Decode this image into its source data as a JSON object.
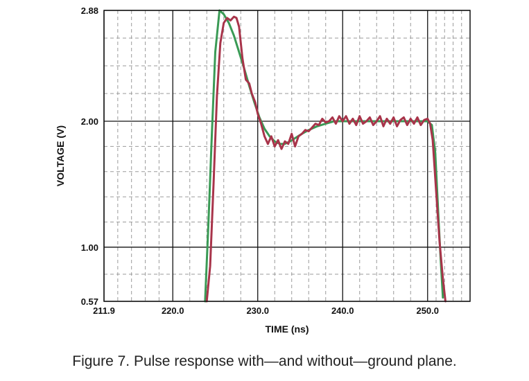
{
  "figure": {
    "caption": "Figure 7. Pulse response with—and without—ground plane."
  },
  "chart_data": {
    "type": "line",
    "title": "",
    "xlabel": "TIME (ns)",
    "ylabel": "VOLTAGE (V)",
    "xlim": [
      211.9,
      255.0
    ],
    "ylim": [
      0.57,
      2.88
    ],
    "x_ticks": [
      211.9,
      220.0,
      230.0,
      240.0,
      250.0
    ],
    "x_tick_labels": [
      "211.9",
      "220.0",
      "230.0",
      "240.0",
      "250.0"
    ],
    "y_ticks": [
      0.57,
      1.0,
      2.0,
      2.88
    ],
    "y_tick_labels": [
      "0.57",
      "1.00",
      "2.00",
      "2.88"
    ],
    "grid": true,
    "grid_style": "major solid, minor dashed",
    "colors": {
      "green": "#3a9a55",
      "red": "#a8344a",
      "grid_major": "#111111",
      "grid_minor": "#9a9a9a"
    },
    "series": [
      {
        "color": "green",
        "x": [
          223.8,
          224.2,
          224.6,
          225.0,
          225.5,
          226.0,
          226.6,
          227.2,
          227.8,
          228.4,
          229.0,
          229.6,
          230.2,
          230.8,
          231.4,
          232.0,
          232.6,
          233.2,
          233.8,
          234.5,
          235.2,
          236.0,
          237.0,
          238.0,
          239.0,
          240.0,
          241.0,
          242.0,
          243.0,
          244.0,
          245.0,
          246.0,
          247.0,
          248.0,
          249.0,
          250.0,
          250.5,
          250.9,
          251.2,
          251.5,
          251.8
        ],
        "y": [
          0.57,
          1.2,
          1.9,
          2.55,
          2.88,
          2.85,
          2.78,
          2.68,
          2.55,
          2.42,
          2.28,
          2.15,
          2.03,
          1.94,
          1.88,
          1.84,
          1.82,
          1.82,
          1.84,
          1.87,
          1.9,
          1.93,
          1.96,
          1.98,
          2.0,
          2.0,
          2.0,
          2.0,
          2.0,
          2.0,
          2.0,
          2.0,
          2.0,
          2.0,
          2.0,
          2.0,
          1.97,
          1.75,
          1.35,
          0.95,
          0.6
        ]
      },
      {
        "color": "red",
        "x": [
          224.0,
          224.4,
          224.8,
          225.2,
          225.6,
          226.0,
          226.4,
          226.8,
          227.2,
          227.5,
          227.8,
          228.2,
          228.6,
          229.0,
          229.3,
          229.7,
          230.0,
          230.4,
          230.8,
          231.2,
          231.6,
          232.0,
          232.4,
          232.8,
          233.2,
          233.6,
          234.0,
          234.4,
          234.8,
          235.2,
          235.6,
          236.0,
          236.4,
          236.8,
          237.2,
          237.6,
          238.0,
          238.4,
          238.8,
          239.2,
          239.6,
          240.0,
          240.4,
          240.8,
          241.2,
          241.6,
          242.0,
          242.4,
          242.8,
          243.2,
          243.6,
          244.0,
          244.4,
          244.8,
          245.2,
          245.6,
          246.0,
          246.4,
          246.8,
          247.2,
          247.6,
          248.0,
          248.4,
          248.8,
          249.2,
          249.6,
          250.0,
          250.3,
          250.6,
          251.0,
          251.4,
          251.8,
          252.1
        ],
        "y": [
          0.57,
          0.85,
          1.5,
          2.2,
          2.62,
          2.78,
          2.82,
          2.8,
          2.83,
          2.82,
          2.75,
          2.5,
          2.33,
          2.3,
          2.22,
          2.15,
          2.06,
          1.98,
          1.88,
          1.82,
          1.88,
          1.8,
          1.85,
          1.78,
          1.84,
          1.82,
          1.9,
          1.8,
          1.88,
          1.9,
          1.93,
          1.92,
          1.95,
          1.98,
          1.97,
          2.02,
          1.99,
          2.0,
          2.03,
          1.98,
          2.04,
          2.0,
          2.04,
          1.98,
          2.02,
          1.97,
          2.04,
          1.98,
          2.0,
          2.03,
          1.97,
          2.0,
          2.04,
          1.96,
          2.02,
          1.98,
          2.03,
          1.96,
          2.01,
          2.03,
          1.97,
          2.02,
          1.98,
          2.03,
          1.97,
          2.01,
          2.02,
          1.98,
          1.85,
          1.45,
          1.05,
          0.75,
          0.57
        ]
      }
    ]
  }
}
